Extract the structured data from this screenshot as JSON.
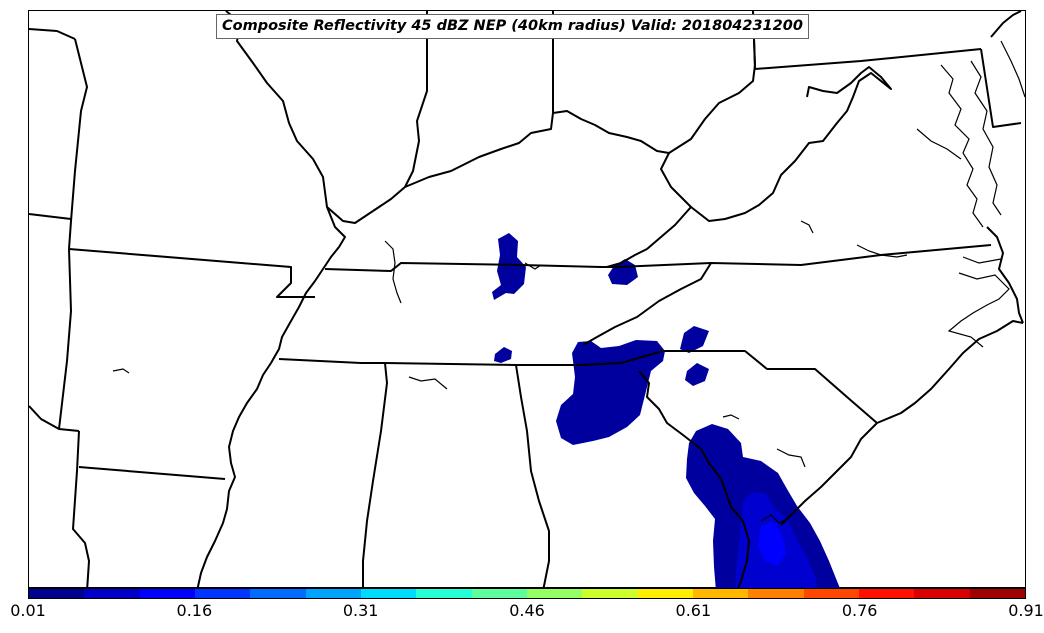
{
  "title": "Composite Reflectivity 45 dBZ NEP (40km radius) Valid: 201804231200",
  "colors": {
    "background": "#ffffff",
    "border": "#000000",
    "prob_low": "#00009f",
    "prob_mid": "#0000cf",
    "prob_high": "#0000ff"
  },
  "colorbar": {
    "segments": [
      "#00008f",
      "#0000c8",
      "#0000ff",
      "#0034ff",
      "#006cff",
      "#00a4ff",
      "#00dcff",
      "#24ffd4",
      "#5cff9c",
      "#94ff64",
      "#ccff2c",
      "#ffee00",
      "#ffb700",
      "#ff7f00",
      "#ff4700",
      "#ff1000",
      "#d80000",
      "#9f0000"
    ],
    "labels": [
      "0.01",
      "0.16",
      "0.31",
      "0.46",
      "0.61",
      "0.76",
      "0.91"
    ]
  },
  "probability_areas": [
    {
      "name": "central-tennessee-blob",
      "level": "low"
    },
    {
      "name": "east-tennessee-blob",
      "level": "low"
    },
    {
      "name": "north-georgia-blob",
      "level": "low"
    },
    {
      "name": "carolina-foothills-blob",
      "level": "low"
    },
    {
      "name": "south-carolina-georgia-blob",
      "level": "low"
    },
    {
      "name": "coastal-georgia-core",
      "level": "mid"
    },
    {
      "name": "coastal-georgia-peak",
      "level": "high"
    }
  ]
}
